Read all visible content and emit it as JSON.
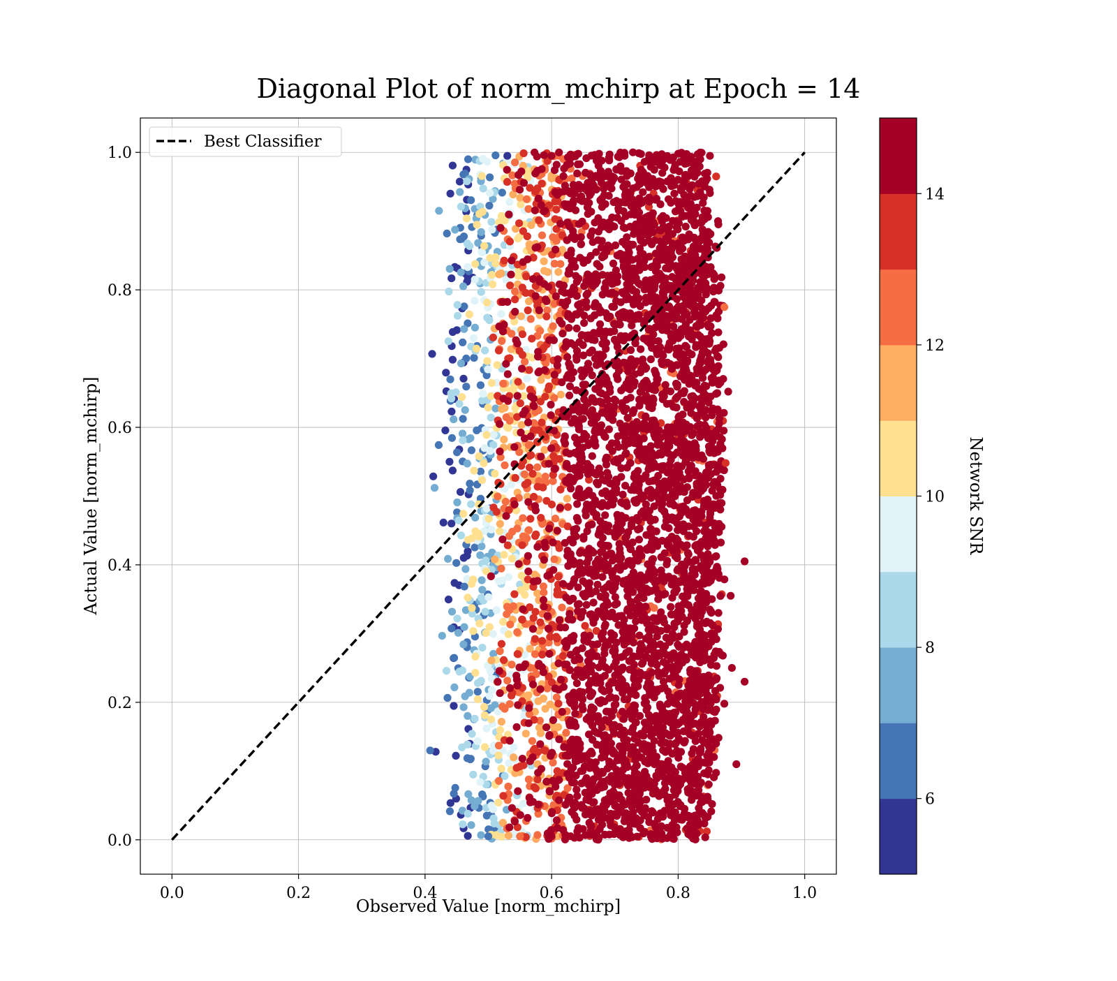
{
  "chart_data": {
    "type": "scatter",
    "title": "Diagonal Plot of norm_mchirp at Epoch = 14",
    "xlabel": "Observed Value [norm_mchirp]",
    "ylabel": "Actual Value [norm_mchirp]",
    "xlim": [
      -0.05,
      1.05
    ],
    "ylim": [
      -0.05,
      1.05
    ],
    "xticks": [
      0.0,
      0.2,
      0.4,
      0.6,
      0.8,
      1.0
    ],
    "xtick_labels": [
      "0.0",
      "0.2",
      "0.4",
      "0.6",
      "0.8",
      "1.0"
    ],
    "yticks": [
      0.0,
      0.2,
      0.4,
      0.6,
      0.8,
      1.0
    ],
    "ytick_labels": [
      "0.0",
      "0.2",
      "0.4",
      "0.6",
      "0.8",
      "1.0"
    ],
    "grid": true,
    "legend": {
      "placement": "upper-left",
      "entries": [
        {
          "label": "Best Classifier",
          "style": "dashed",
          "color": "#000000"
        }
      ]
    },
    "reference_line": {
      "name": "Best Classifier",
      "x": [
        0.0,
        1.0
      ],
      "y": [
        0.0,
        1.0
      ],
      "style": "dashed",
      "color": "#000000"
    },
    "scatter_summary": {
      "x_range": [
        0.41,
        0.9
      ],
      "y_range": [
        0.0,
        1.0
      ],
      "density": "high; dominated by SNR >= 14 points between x 0.6 and 0.88",
      "color_by": "Network SNR"
    },
    "scatter_points": [
      {
        "x": 0.905,
        "y": 0.405,
        "c": 15
      },
      {
        "x": 0.905,
        "y": 0.23,
        "c": 15
      },
      {
        "x": 0.892,
        "y": 0.11,
        "c": 15
      },
      {
        "x": 0.885,
        "y": 0.25,
        "c": 15
      },
      {
        "x": 0.883,
        "y": 0.355,
        "c": 15
      },
      {
        "x": 0.875,
        "y": 0.548,
        "c": 13
      },
      {
        "x": 0.873,
        "y": 0.775,
        "c": 12
      },
      {
        "x": 0.863,
        "y": 0.9,
        "c": 15
      },
      {
        "x": 0.86,
        "y": 0.965,
        "c": 13
      },
      {
        "x": 0.838,
        "y": 0.055,
        "c": 15
      },
      {
        "x": 0.81,
        "y": 0.045,
        "c": 15
      },
      {
        "x": 0.765,
        "y": 0.02,
        "c": 15
      },
      {
        "x": 0.68,
        "y": 0.022,
        "c": 14
      },
      {
        "x": 0.6,
        "y": 0.005,
        "c": 15
      },
      {
        "x": 0.5,
        "y": 0.005,
        "c": 6
      },
      {
        "x": 0.55,
        "y": 0.005,
        "c": 12
      },
      {
        "x": 0.408,
        "y": 0.13,
        "c": 6
      },
      {
        "x": 0.415,
        "y": 0.512,
        "c": 7
      },
      {
        "x": 0.422,
        "y": 0.915,
        "c": 7
      },
      {
        "x": 0.44,
        "y": 0.94,
        "c": 5
      },
      {
        "x": 0.468,
        "y": 0.99,
        "c": 6
      },
      {
        "x": 0.53,
        "y": 0.995,
        "c": 5
      },
      {
        "x": 0.6,
        "y": 0.995,
        "c": 15
      },
      {
        "x": 0.675,
        "y": 0.998,
        "c": 15
      },
      {
        "x": 0.8,
        "y": 0.998,
        "c": 15
      },
      {
        "x": 0.835,
        "y": 0.99,
        "c": 15
      }
    ],
    "colorbar": {
      "label": "Network SNR",
      "range": [
        5,
        15
      ],
      "boundaries": [
        5,
        6,
        7,
        8,
        9,
        10,
        11,
        12,
        13,
        14,
        15
      ],
      "colors": [
        "#313695",
        "#4575b4",
        "#74add1",
        "#abd9e9",
        "#e0f3f8",
        "#fee090",
        "#fdae61",
        "#f46d43",
        "#d73027",
        "#a50026"
      ],
      "ticks": [
        6,
        8,
        10,
        12,
        14
      ],
      "tick_labels": [
        "6",
        "8",
        "10",
        "12",
        "14"
      ]
    }
  }
}
